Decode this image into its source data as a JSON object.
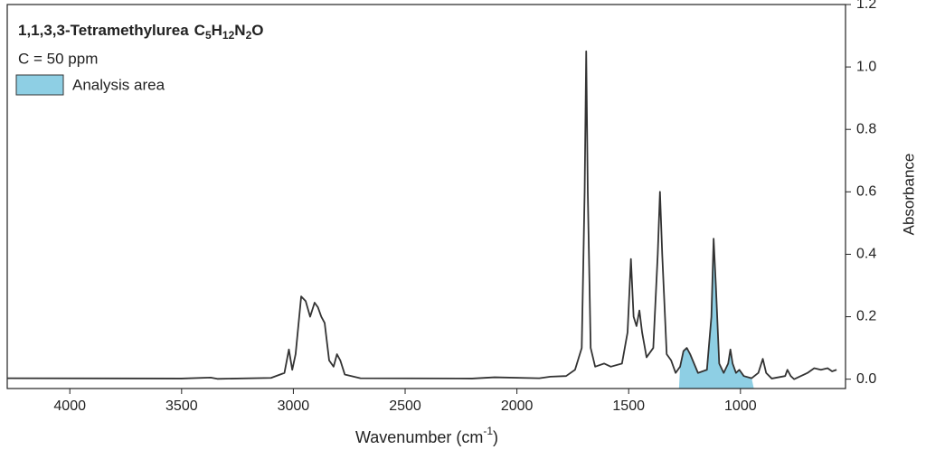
{
  "chart_data": {
    "type": "line",
    "title": "1,1,3,3-Tetramethylurea",
    "formula": [
      {
        "text": "C"
      },
      {
        "text": "5",
        "sub": true
      },
      {
        "text": "H"
      },
      {
        "text": "12",
        "sub": true
      },
      {
        "text": "N"
      },
      {
        "text": "2",
        "sub": true
      },
      {
        "text": "O"
      }
    ],
    "subtitle": "C = 50 ppm",
    "analysis_area": {
      "name": "Analysis area",
      "color": "#8ecfe4",
      "range": [
        1275,
        940
      ]
    },
    "x_label": {
      "text": "Wavenumber (cm",
      "sup": "-1",
      "end": ")"
    },
    "y_label": "Absorbance",
    "xlim": [
      4280,
      530
    ],
    "ylim": [
      -0.03,
      1.2
    ],
    "xticks": [
      4000,
      3500,
      3000,
      2500,
      2000,
      1500,
      1000
    ],
    "yticks": [
      {
        "value": 0,
        "label": "0.0"
      },
      {
        "value": 0.2,
        "label": "0.2"
      },
      {
        "value": 0.4,
        "label": "0.4"
      },
      {
        "value": 0.6,
        "label": "0.6"
      },
      {
        "value": 0.8,
        "label": "0.8"
      },
      {
        "value": 1,
        "label": "1.0"
      },
      {
        "value": 1.2,
        "label": "1.2"
      }
    ],
    "y_axis_side": "right",
    "series": [
      {
        "color": "#333333",
        "x": [
          4280,
          3500,
          3370,
          3340,
          3100,
          3040,
          3020,
          3005,
          2990,
          2965,
          2945,
          2925,
          2905,
          2890,
          2875,
          2860,
          2840,
          2820,
          2805,
          2790,
          2770,
          2700,
          2200,
          2100,
          1900,
          1850,
          1780,
          1740,
          1710,
          1697,
          1690,
          1683,
          1670,
          1650,
          1610,
          1580,
          1530,
          1505,
          1490,
          1478,
          1465,
          1452,
          1440,
          1420,
          1390,
          1370,
          1360,
          1350,
          1330,
          1310,
          1290,
          1270,
          1255,
          1240,
          1225,
          1190,
          1150,
          1130,
          1120,
          1110,
          1095,
          1075,
          1055,
          1045,
          1035,
          1020,
          1005,
          985,
          950,
          920,
          900,
          885,
          860,
          800,
          790,
          775,
          760,
          730,
          700,
          670,
          640,
          610,
          590,
          570
        ],
        "values": [
          0.003,
          0.002,
          0.005,
          0.001,
          0.004,
          0.02,
          0.095,
          0.03,
          0.08,
          0.265,
          0.25,
          0.2,
          0.245,
          0.23,
          0.2,
          0.18,
          0.06,
          0.04,
          0.08,
          0.06,
          0.015,
          0.003,
          0.002,
          0.006,
          0.003,
          0.008,
          0.01,
          0.03,
          0.1,
          0.6,
          1.05,
          0.6,
          0.1,
          0.04,
          0.05,
          0.04,
          0.05,
          0.15,
          0.385,
          0.2,
          0.17,
          0.22,
          0.15,
          0.07,
          0.1,
          0.4,
          0.6,
          0.4,
          0.08,
          0.06,
          0.02,
          0.04,
          0.09,
          0.1,
          0.08,
          0.02,
          0.03,
          0.2,
          0.45,
          0.3,
          0.05,
          0.02,
          0.05,
          0.095,
          0.05,
          0.02,
          0.03,
          0.01,
          0.003,
          0.02,
          0.065,
          0.02,
          0.002,
          0.01,
          0.03,
          0.01,
          0,
          0.01,
          0.02,
          0.035,
          0.03,
          0.035,
          0.025,
          0.03
        ]
      }
    ]
  }
}
